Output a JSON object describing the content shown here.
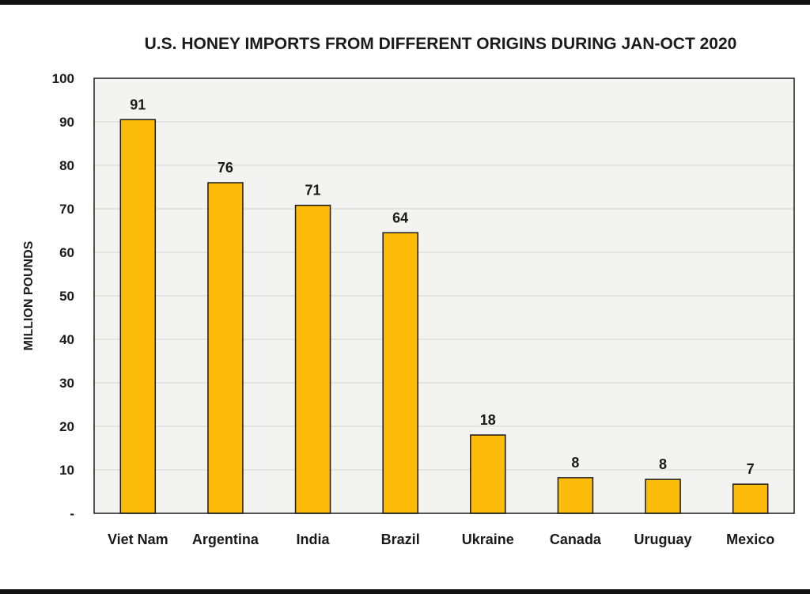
{
  "chart_data": {
    "type": "bar",
    "title": "U.S. HONEY IMPORTS FROM DIFFERENT ORIGINS DURING JAN-OCT 2020",
    "xlabel": "",
    "ylabel": "MILLION POUNDS",
    "categories": [
      "Viet Nam",
      "Argentina",
      "India",
      "Brazil",
      "Ukraine",
      "Canada",
      "Uruguay",
      "Mexico"
    ],
    "values": [
      90.5,
      76,
      70.8,
      64.5,
      18,
      8.2,
      7.8,
      6.7
    ],
    "data_labels": [
      "91",
      "76",
      "71",
      "64",
      "18",
      "8",
      "8",
      "7"
    ],
    "ylim": [
      0,
      100
    ],
    "yticks": [
      0,
      10,
      20,
      30,
      40,
      50,
      60,
      70,
      80,
      90,
      100
    ],
    "ytick_labels": [
      "-",
      "10",
      "20",
      "30",
      "40",
      "50",
      "60",
      "70",
      "80",
      "90",
      "100"
    ],
    "grid": true,
    "legend": "none",
    "colors": {
      "bar": "#FDBB0A",
      "bar_stroke": "#1a1a1a",
      "plot_bg": "#F3F3F1"
    }
  }
}
